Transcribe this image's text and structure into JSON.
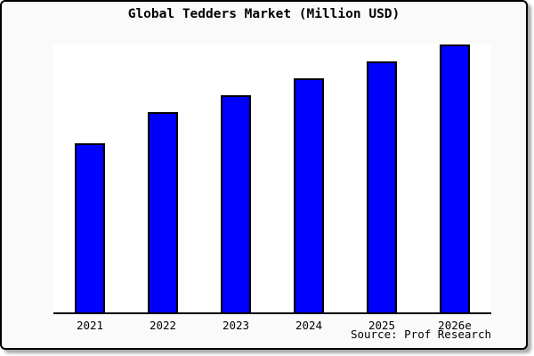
{
  "card": {
    "background": "#fafafa",
    "plot_background": "#ffffff",
    "border_color": "#000000"
  },
  "chart_data": {
    "type": "bar",
    "title": "Global Tedders Market (Million USD)",
    "categories": [
      "2021",
      "2022",
      "2023",
      "2024",
      "2025",
      "2026e"
    ],
    "values": [
      63.1,
      74.8,
      81.1,
      87.4,
      93.7,
      100
    ],
    "value_scale_note": "y-axis unlabeled; values are relative, normalized so 2026e = 100",
    "xlabel": "",
    "ylabel": "",
    "ylim": [
      0,
      100
    ],
    "grid": false,
    "legend": "none",
    "bar_color": "#0000ff",
    "bar_border_color": "#000000"
  },
  "source_note": "Source: Prof Research"
}
